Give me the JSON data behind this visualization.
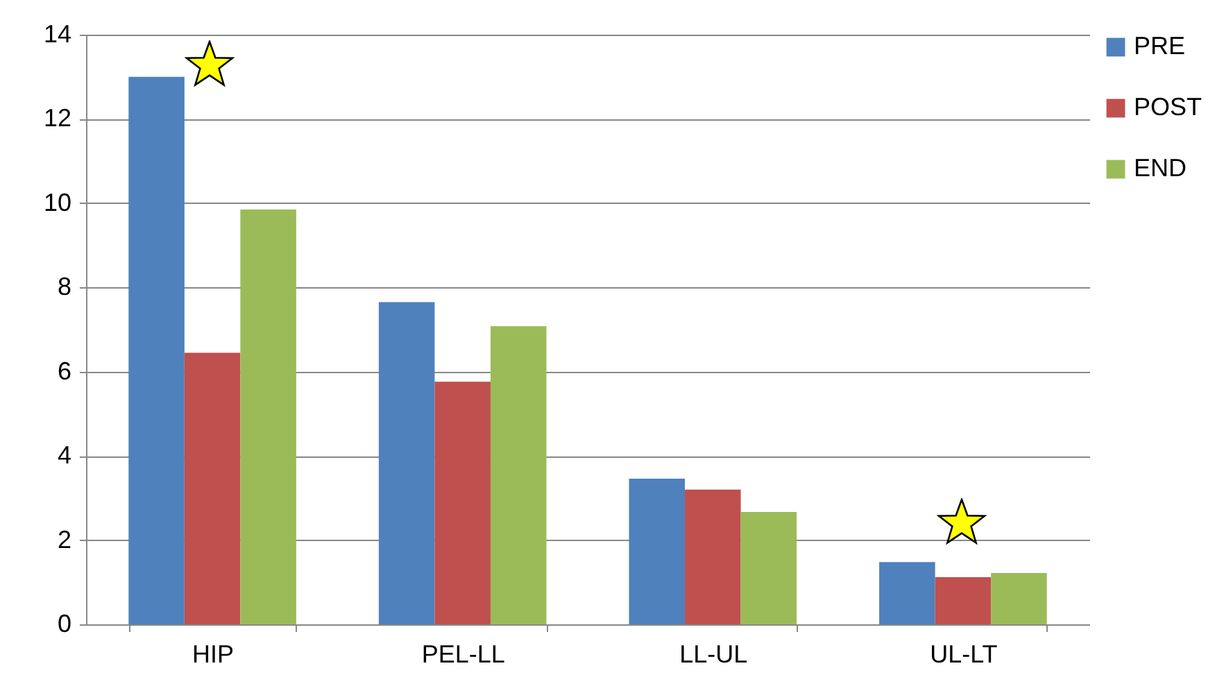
{
  "chart_data": {
    "type": "bar",
    "categories": [
      "HIP",
      "PEL-LL",
      "LL-UL",
      "UL-LT"
    ],
    "series": [
      {
        "name": "PRE",
        "color": "#4f81bd",
        "values": [
          13.0,
          7.65,
          3.46,
          1.48
        ]
      },
      {
        "name": "POST",
        "color": "#c0504d",
        "values": [
          6.45,
          5.76,
          3.2,
          1.12
        ]
      },
      {
        "name": "END",
        "color": "#9bbb59",
        "values": [
          9.85,
          7.08,
          2.67,
          1.22
        ]
      }
    ],
    "ylim": [
      0,
      14
    ],
    "yticks": [
      0,
      2,
      4,
      6,
      8,
      10,
      12,
      14
    ],
    "grid": "y",
    "legend": "right"
  }
}
